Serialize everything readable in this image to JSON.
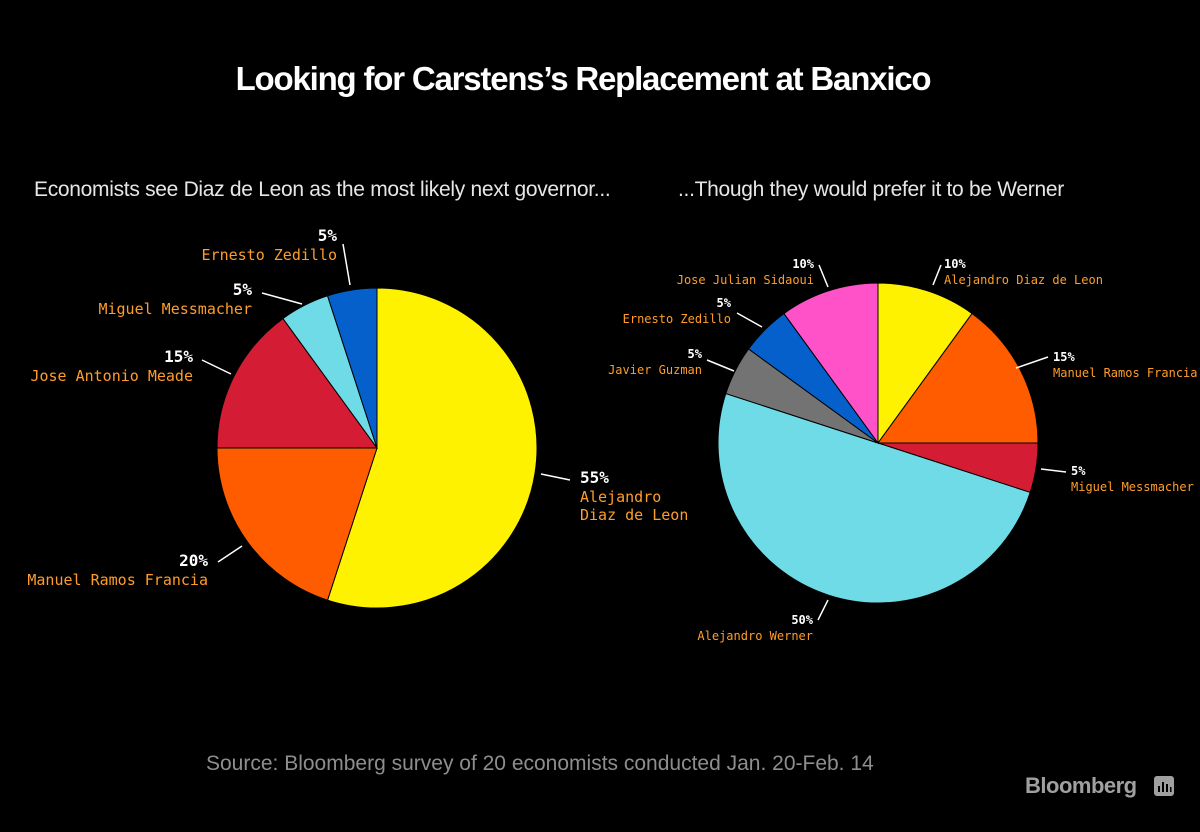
{
  "title": "Looking for Carstens’s Replacement at Banxico",
  "source": "Source: Bloomberg survey of 20 economists conducted Jan. 20-Feb. 14",
  "brand": "Bloomberg",
  "chart_data": [
    {
      "type": "pie",
      "title": "Economists see Diaz de Leon as the most likely next governor...",
      "slices": [
        {
          "label": "Alejandro Diaz de Leon",
          "value": 55,
          "pct": "55%",
          "color": "#fff200",
          "label_lines": [
            "Alejandro",
            "Diaz de Leon"
          ]
        },
        {
          "label": "Manuel Ramos Francia",
          "value": 20,
          "pct": "20%",
          "color": "#ff5c00",
          "label_lines": [
            "Manuel Ramos Francia"
          ]
        },
        {
          "label": "Jose Antonio Meade",
          "value": 15,
          "pct": "15%",
          "color": "#d41c35",
          "label_lines": [
            "Jose Antonio Meade"
          ]
        },
        {
          "label": "Miguel Messmacher",
          "value": 5,
          "pct": "5%",
          "color": "#6fdbe6",
          "label_lines": [
            "Miguel Messmacher"
          ]
        },
        {
          "label": "Ernesto Zedillo",
          "value": 5,
          "pct": "5%",
          "color": "#0560cc",
          "label_lines": [
            "Ernesto Zedillo"
          ]
        }
      ]
    },
    {
      "type": "pie",
      "title": "...Though they would prefer it to be Werner",
      "slices": [
        {
          "label": "Alejandro Diaz de Leon",
          "value": 10,
          "pct": "10%",
          "color": "#fff200",
          "label_lines": [
            "Alejandro Diaz de Leon"
          ]
        },
        {
          "label": "Manuel Ramos Francia",
          "value": 15,
          "pct": "15%",
          "color": "#ff5c00",
          "label_lines": [
            "Manuel Ramos Francia"
          ]
        },
        {
          "label": "Miguel Messmacher",
          "value": 5,
          "pct": "5%",
          "color": "#d41c35",
          "label_lines": [
            "Miguel Messmacher"
          ]
        },
        {
          "label": "Alejandro Werner",
          "value": 50,
          "pct": "50%",
          "color": "#6fdbe6",
          "label_lines": [
            "Alejandro Werner"
          ]
        },
        {
          "label": "Javier Guzman",
          "value": 5,
          "pct": "5%",
          "color": "#737373",
          "label_lines": [
            "Javier Guzman"
          ]
        },
        {
          "label": "Ernesto Zedillo",
          "value": 5,
          "pct": "5%",
          "color": "#0560cc",
          "label_lines": [
            "Ernesto Zedillo"
          ]
        },
        {
          "label": "Jose Julian Sidaoui",
          "value": 10,
          "pct": "10%",
          "color": "#ff52c9",
          "label_lines": [
            "Jose Julian Sidaoui"
          ]
        }
      ]
    }
  ]
}
